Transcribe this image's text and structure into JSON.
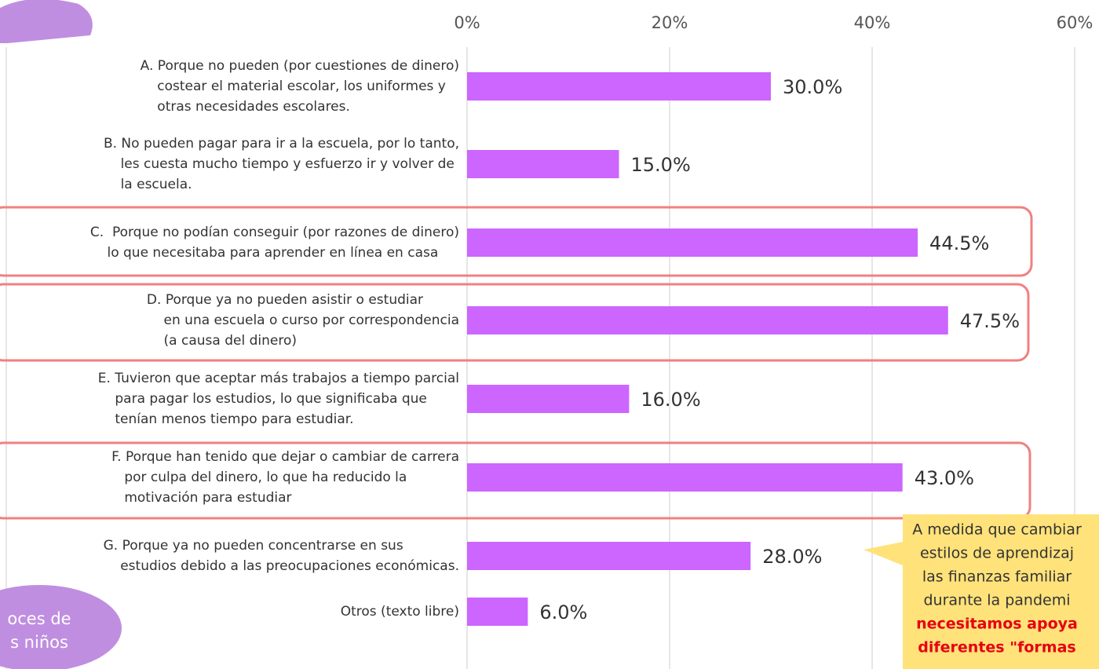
{
  "chart_data": {
    "type": "barh",
    "categories": [
      "A. Porque no pueden (por cuestiones de dinero)\n    costear el material escolar, los uniformes y\n    otras necesidades escolares.",
      "B. No pueden pagar para ir a la escuela, por lo tanto,\n    les cuesta mucho tiempo y esfuerzo ir y volver de\n    la escuela.",
      "C.  Porque no podían conseguir (por razones de dinero)\n    lo que necesitaba para aprender en línea en casa",
      "D. Porque ya no pueden asistir o estudiar\n    en una escuela o curso por correspondencia\n    (a causa del dinero)",
      "E. Tuvieron que aceptar más trabajos a tiempo parcial\n    para pagar los estudios, lo que significaba que\n    tenían menos tiempo para estudiar.",
      "F. Porque han tenido que dejar o cambiar de carrera\n   por culpa del dinero, lo que ha reducido la\n   motivación para estudiar",
      "G. Porque ya no pueden concentrarse en sus\n    estudios debido a las preocupaciones económicas.",
      "Otros (texto libre)"
    ],
    "values": [
      30,
      15,
      44.5,
      47.5,
      16,
      43,
      28,
      6
    ],
    "value_labels": [
      "30.0%",
      "15.0%",
      "44.5%",
      "47.5%",
      "16.0%",
      "43.0%",
      "28.0%",
      "6.0%"
    ],
    "color": "#cc66ff",
    "xlim": [
      0,
      60
    ],
    "xticks": [
      {
        "value": 0,
        "label": "0%"
      },
      {
        "value": 20,
        "label": "20%"
      },
      {
        "value": 40,
        "label": "40%"
      },
      {
        "value": 60,
        "label": "60%"
      }
    ],
    "grid": true,
    "callout": [
      "A medida que cambiar",
      "estilos de aprendizaj",
      "las finanzas familiar",
      "durante la pandemi",
      "necesitamos apoya",
      "diferentes \"formas"
    ],
    "badge": [
      "oces de",
      "s niños"
    ]
  }
}
